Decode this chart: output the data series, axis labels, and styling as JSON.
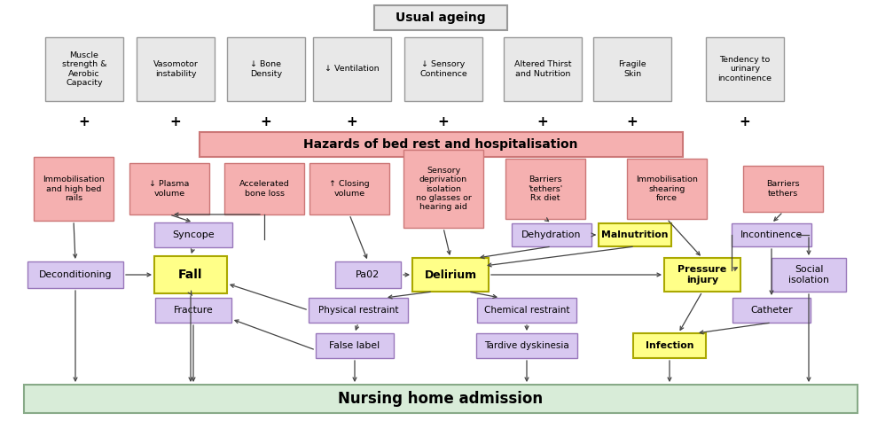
{
  "bg": "#ffffff",
  "gray_fc": "#e8e8e8",
  "gray_ec": "#999999",
  "pink_fc": "#f5b0b0",
  "pink_ec": "#cc7777",
  "purple_fc": "#d8c8f0",
  "purple_ec": "#9977bb",
  "yellow_fc": "#ffff88",
  "yellow_ec": "#aaa800",
  "green_fc": "#d8ecd8",
  "green_ec": "#88aa88",
  "arrow_c": "#444444",
  "top_labels": [
    "Muscle\nstrength &\nAerobic\nCapacity",
    "Vasomotor\ninstability",
    "↓ Bone\nDensity",
    "↓ Ventilation",
    "↓ Sensory\nContinence",
    "Altered Thirst\nand Nutrition",
    "Fragile\nSkin",
    "Tendency to\nurinary\nincontinence"
  ],
  "sec_labels": [
    "Immobilisation\nand high bed\nrails",
    "↓ Plasma\nvolume",
    "Accelerated\nbone loss",
    "↑ Closing\nvolume",
    "Sensory\ndeprivation\nisolation\nno glasses or\nhearing aid",
    "Barriers\n'tethers'\nRx diet",
    "Immobilisation\nshearing\nforce",
    "Barriers\ntethers"
  ]
}
